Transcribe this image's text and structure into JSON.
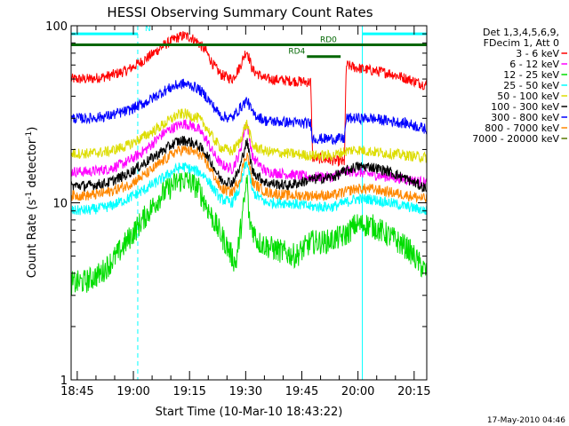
{
  "chart_data": {
    "type": "line",
    "title": "HESSI Observing Summary Count Rates",
    "xlabel": "Start Time (10-Mar-10 18:43:22)",
    "ylabel_main": "Count Rate (s",
    "ylabel_sup": "-1",
    "ylabel_mid": " detector",
    "ylabel_end": ")",
    "yscale": "log",
    "ylim": [
      1,
      100
    ],
    "xlim_min": [
      0,
      95
    ],
    "x_ticks": [
      {
        "m": 1.633,
        "label": "18:45"
      },
      {
        "m": 16.633,
        "label": "19:00"
      },
      {
        "m": 31.633,
        "label": "19:15"
      },
      {
        "m": 46.633,
        "label": "19:30"
      },
      {
        "m": 61.633,
        "label": "19:45"
      },
      {
        "m": 76.633,
        "label": "20:00"
      },
      {
        "m": 91.633,
        "label": "20:15"
      }
    ],
    "y_ticks": [
      {
        "v": 1,
        "label": "1"
      },
      {
        "v": 10,
        "label": "10"
      },
      {
        "v": 100,
        "label": "100"
      }
    ],
    "legend_header": [
      "Det 1,3,4,5,6,9,",
      "FDecim 1, Att 0"
    ],
    "timestamp": "17-May-2010 04:46",
    "annotations": {
      "night_label": "N",
      "night_intervals": [
        [
          0,
          17.8
        ],
        [
          77.8,
          95
        ]
      ],
      "night_y": 90,
      "night_solid_lines": [
        0,
        77.8
      ],
      "night_dashed_lines": [
        17.8,
        95
      ],
      "ratedecimation_bar": {
        "x": [
          0,
          95
        ],
        "y": 78
      },
      "rd4": {
        "label": "RD4",
        "x": [
          63,
          72
        ],
        "y": 67
      },
      "rd0": {
        "label": "RD0",
        "x": [
          65.5,
          72
        ],
        "y": 78
      }
    },
    "series": [
      {
        "name": "3 - 6 keV",
        "color": "#ff0000",
        "x": [
          0,
          5,
          10,
          15,
          20,
          25,
          28,
          30,
          32,
          34,
          36,
          38,
          40,
          43,
          45,
          46.5,
          47,
          48.5,
          52,
          58,
          64,
          64.5,
          73,
          73.5,
          76,
          80,
          85,
          90,
          95
        ],
        "y": [
          50,
          50,
          52,
          56,
          65,
          78,
          85,
          88,
          86,
          80,
          72,
          60,
          53,
          50,
          58,
          70,
          72,
          56,
          50,
          49,
          48,
          18,
          17,
          60,
          58,
          56,
          54,
          50,
          46
        ]
      },
      {
        "name": "6 - 12 keV",
        "color": "#ff00ff",
        "x": [
          0,
          5,
          10,
          15,
          20,
          25,
          28,
          30,
          32,
          34,
          36,
          38,
          40,
          43,
          45,
          46.5,
          47,
          48.5,
          52,
          58,
          64,
          70,
          73,
          76,
          80,
          85,
          90,
          95
        ],
        "y": [
          15,
          15,
          15.5,
          17,
          20,
          25,
          27,
          28,
          27.5,
          26,
          23,
          19,
          16.5,
          15.5,
          19,
          27,
          28,
          18,
          15,
          14.5,
          14,
          14,
          15,
          15,
          14.5,
          14,
          13.5,
          13
        ]
      },
      {
        "name": "12 - 25 keV",
        "color": "#00dd00",
        "x": [
          0,
          4,
          8,
          12,
          16,
          20,
          24,
          28,
          30,
          32,
          34,
          38,
          42,
          44,
          46.5,
          47,
          47.5,
          50,
          54,
          60,
          64,
          68,
          73,
          76,
          80,
          85,
          90,
          95
        ],
        "y": [
          3.5,
          3.6,
          4.0,
          5.0,
          6.5,
          8.5,
          11,
          13,
          13.5,
          13,
          12,
          8,
          5.5,
          4.5,
          11,
          14,
          8,
          6,
          5.5,
          5.0,
          6,
          6,
          6.5,
          7.5,
          7.5,
          6.5,
          5.5,
          4
        ]
      },
      {
        "name": "25 - 50 keV",
        "color": "#00ffff",
        "x": [
          0,
          5,
          10,
          15,
          20,
          25,
          28,
          30,
          32,
          34,
          36,
          38,
          40,
          43,
          45,
          46.5,
          47,
          48.5,
          52,
          58,
          64,
          70,
          73,
          76,
          80,
          85,
          90,
          95
        ],
        "y": [
          9,
          9.1,
          9.5,
          10.5,
          12,
          14,
          15.5,
          16,
          15.5,
          15,
          14,
          12,
          10.5,
          10,
          12,
          16,
          17,
          11.5,
          10,
          10,
          9.5,
          9.5,
          10,
          10.5,
          10.5,
          10,
          9.5,
          9
        ]
      },
      {
        "name": "50 - 100 keV",
        "color": "#dddd00",
        "x": [
          0,
          5,
          10,
          15,
          20,
          25,
          28,
          30,
          32,
          34,
          36,
          38,
          40,
          43,
          45,
          46.5,
          47,
          48.5,
          52,
          58,
          64,
          70,
          73,
          76,
          80,
          85,
          90,
          95
        ],
        "y": [
          19,
          19,
          19.5,
          21,
          24,
          28,
          31,
          32,
          31,
          30,
          27,
          23,
          20.5,
          19.5,
          22,
          27,
          28,
          21,
          19.5,
          19,
          18.5,
          18.5,
          19.5,
          20,
          19.5,
          19,
          18.5,
          18
        ]
      },
      {
        "name": "100 - 300 keV",
        "color": "#000000",
        "x": [
          0,
          5,
          10,
          15,
          20,
          25,
          28,
          30,
          32,
          34,
          36,
          38,
          40,
          43,
          45,
          46.5,
          47,
          48.5,
          52,
          58,
          64,
          70,
          73,
          76,
          80,
          85,
          90,
          95
        ],
        "y": [
          12.5,
          12.5,
          13,
          14.5,
          17,
          20,
          22,
          22.5,
          22,
          21,
          19,
          16,
          13.5,
          13,
          15.5,
          21,
          22,
          15,
          13,
          12.5,
          13.5,
          14,
          15,
          16,
          16,
          15,
          13.5,
          12
        ]
      },
      {
        "name": "300 - 800 keV",
        "color": "#0000ff",
        "x": [
          0,
          5,
          10,
          15,
          20,
          25,
          28,
          30,
          32,
          34,
          36,
          38,
          40,
          43,
          45,
          46.5,
          47,
          48.5,
          52,
          58,
          64,
          64.5,
          73,
          73.5,
          76,
          80,
          85,
          90,
          95
        ],
        "y": [
          30,
          30,
          31,
          33,
          37,
          43,
          46,
          47,
          46,
          44,
          40,
          35,
          31,
          30,
          34,
          37,
          38,
          32,
          29,
          28.5,
          28,
          23,
          23,
          30,
          30,
          30,
          29,
          28,
          26
        ]
      },
      {
        "name": "800 - 7000 keV",
        "color": "#ff8800",
        "x": [
          0,
          5,
          10,
          15,
          20,
          25,
          28,
          30,
          32,
          34,
          36,
          38,
          40,
          43,
          45,
          46.5,
          47,
          48.5,
          52,
          58,
          64,
          70,
          73,
          76,
          80,
          85,
          90,
          95
        ],
        "y": [
          11,
          11,
          11.5,
          12.5,
          14.5,
          17.5,
          19.5,
          20,
          19.5,
          19,
          17,
          14.5,
          12,
          11.5,
          13.5,
          18,
          19,
          13,
          11.5,
          11,
          11,
          11,
          11.5,
          12,
          12,
          11.5,
          11,
          10.5
        ]
      },
      {
        "name": "7000 - 20000 keV",
        "color": "#557700",
        "x": [
          0,
          95
        ],
        "y": [
          78,
          78
        ]
      }
    ]
  }
}
